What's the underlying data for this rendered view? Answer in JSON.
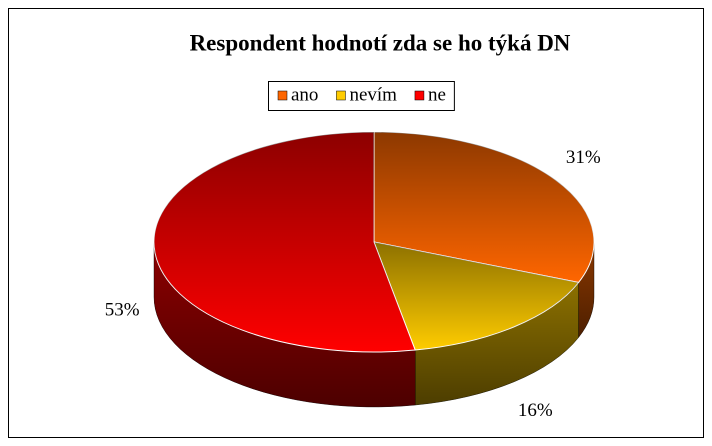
{
  "chart_data": {
    "type": "pie3d",
    "title": "Respondent hodnotí zda se ho týká DN",
    "categories": [
      "ano",
      "nevím",
      "ne"
    ],
    "values": [
      31,
      16,
      53
    ],
    "value_labels": [
      "31%",
      "16%",
      "53%"
    ],
    "colors": [
      "#ff6600",
      "#ffcc00",
      "#ff0000"
    ],
    "legend": "top"
  }
}
